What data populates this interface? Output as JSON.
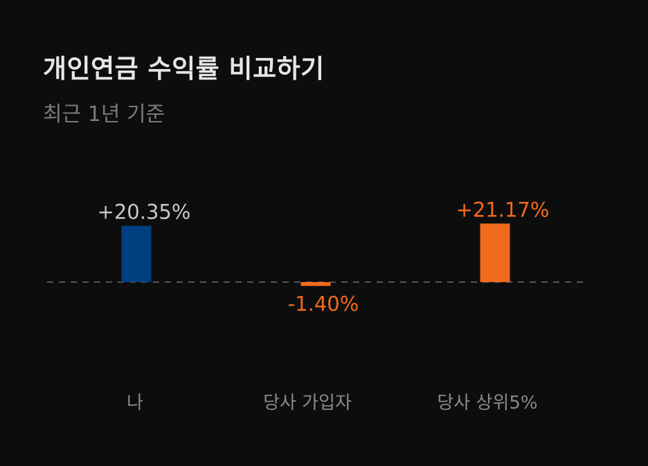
{
  "header": {
    "title": "개인연금 수익률 비교하기",
    "subtitle": "최근 1년 기준"
  },
  "colors": {
    "background": "#0d0d0d",
    "mine_bar": "#003f7f",
    "orange": "#f26b1d",
    "positive_label_mine": "#c8c8c8",
    "baseline": "#555555",
    "category_text": "#8a8a8a"
  },
  "chart_data": {
    "type": "bar",
    "categories": [
      "나",
      "당사 가입자",
      "당사 상위5%"
    ],
    "values": [
      20.35,
      -1.4,
      21.17
    ],
    "value_labels": [
      "+20.35%",
      "-1.40%",
      "+21.17%"
    ],
    "bar_colors": [
      "#003f7f",
      "#f26b1d",
      "#f26b1d"
    ],
    "label_colors": [
      "#c8c8c8",
      "#f26b1d",
      "#f26b1d"
    ],
    "grid": false,
    "legend": "none",
    "baseline": "dashed zero line"
  }
}
